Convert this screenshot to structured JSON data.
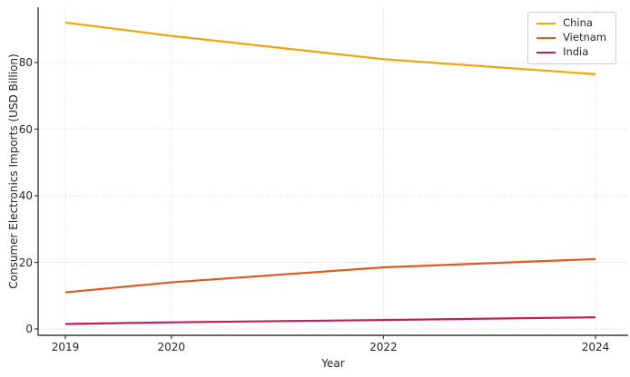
{
  "figure": {
    "background_color": "#ffffff",
    "grid_color": "#d9d9d9",
    "spine_color": "#3b3b3b",
    "text_color": "#262626"
  },
  "chart_data": {
    "type": "line",
    "title": "",
    "xlabel": "Year",
    "ylabel": "Consumer Electronics Imports (USD Billion)",
    "x": [
      2019,
      2020,
      2022,
      2024
    ],
    "series": [
      {
        "name": "China",
        "color": "#F0A30A",
        "values": [
          92,
          88,
          81,
          76.5
        ]
      },
      {
        "name": "Vietnam",
        "color": "#DD5B1E",
        "values": [
          11,
          14,
          18.5,
          21
        ]
      },
      {
        "name": "India",
        "color": "#C21E56",
        "values": [
          1.5,
          2,
          2.7,
          3.5
        ]
      }
    ],
    "xticks": [
      2019,
      2020,
      2022,
      2024
    ],
    "yticks": [
      0,
      20,
      40,
      60,
      80
    ],
    "xlim": [
      2018.743,
      2024.308
    ],
    "ylim": [
      -1.9,
      96.6
    ],
    "grid": true,
    "grid_style": "dotted",
    "legend_position": "upper right"
  }
}
